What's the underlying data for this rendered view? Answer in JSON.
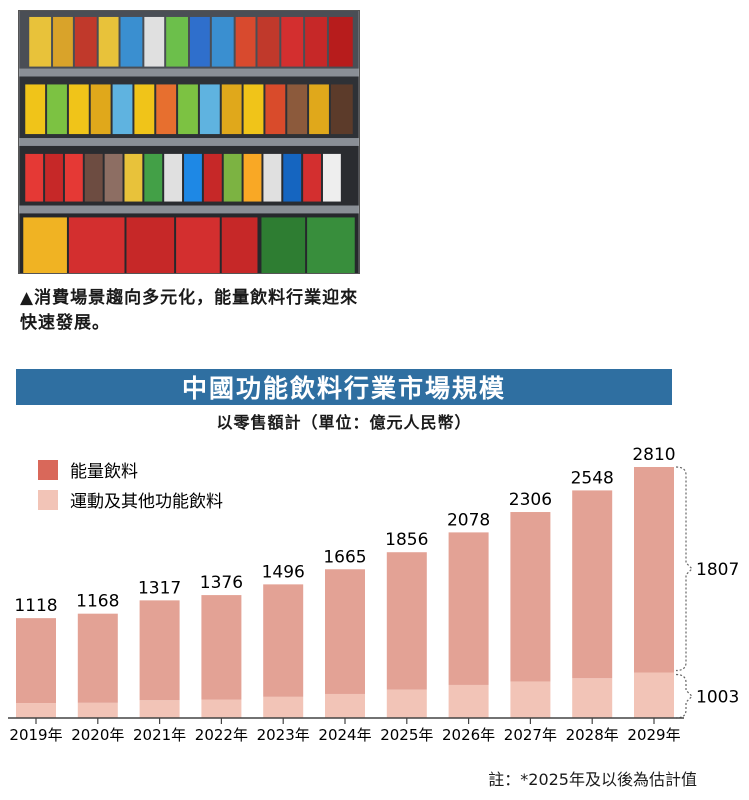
{
  "photo_caption": "▲消費場景趨向多元化，能量飲料行業迎來快速發展。",
  "chart_data": {
    "type": "bar",
    "title": "中國功能飲料行業市場規模",
    "subtitle": "以零售額計（單位：億元人民幣）",
    "categories": [
      "2019年",
      "2020年",
      "2021年",
      "2022年",
      "2023年",
      "2024年",
      "2025年",
      "2026年",
      "2027年",
      "2028年",
      "2029年"
    ],
    "series": [
      {
        "name": "運動及其他功能飲料",
        "color": "#f2c4b7",
        "values": [
          167,
          170,
          199,
          207,
          237,
          269,
          318,
          370,
          409,
          445,
          509
        ]
      },
      {
        "name": "能量飲料",
        "color": "#e3a295",
        "values": [
          951,
          998,
          1118,
          1169,
          1259,
          1396,
          1538,
          1708,
          1897,
          2103,
          2301
        ]
      }
    ],
    "totals": [
      1118,
      1168,
      1317,
      1376,
      1496,
      1665,
      1856,
      2078,
      2306,
      2548,
      2810
    ],
    "stacked": true,
    "ylim": [
      0,
      2810
    ],
    "annotations": [
      {
        "label": "1807",
        "applies_to": "2029年 能量飲料 bracket"
      },
      {
        "label": "1003",
        "applies_to": "2029年 運動及其他功能飲料 bracket"
      }
    ],
    "legend_markers": [
      {
        "label": "能量飲料",
        "color": "#d9685a"
      },
      {
        "label": "運動及其他功能飲料",
        "color": "#f2c4b7"
      }
    ],
    "footnote": "註：*2025年及以後為估計值"
  },
  "colors": {
    "banner": "#2f6fa1",
    "axis": "#444444",
    "bracket": "#666666"
  }
}
